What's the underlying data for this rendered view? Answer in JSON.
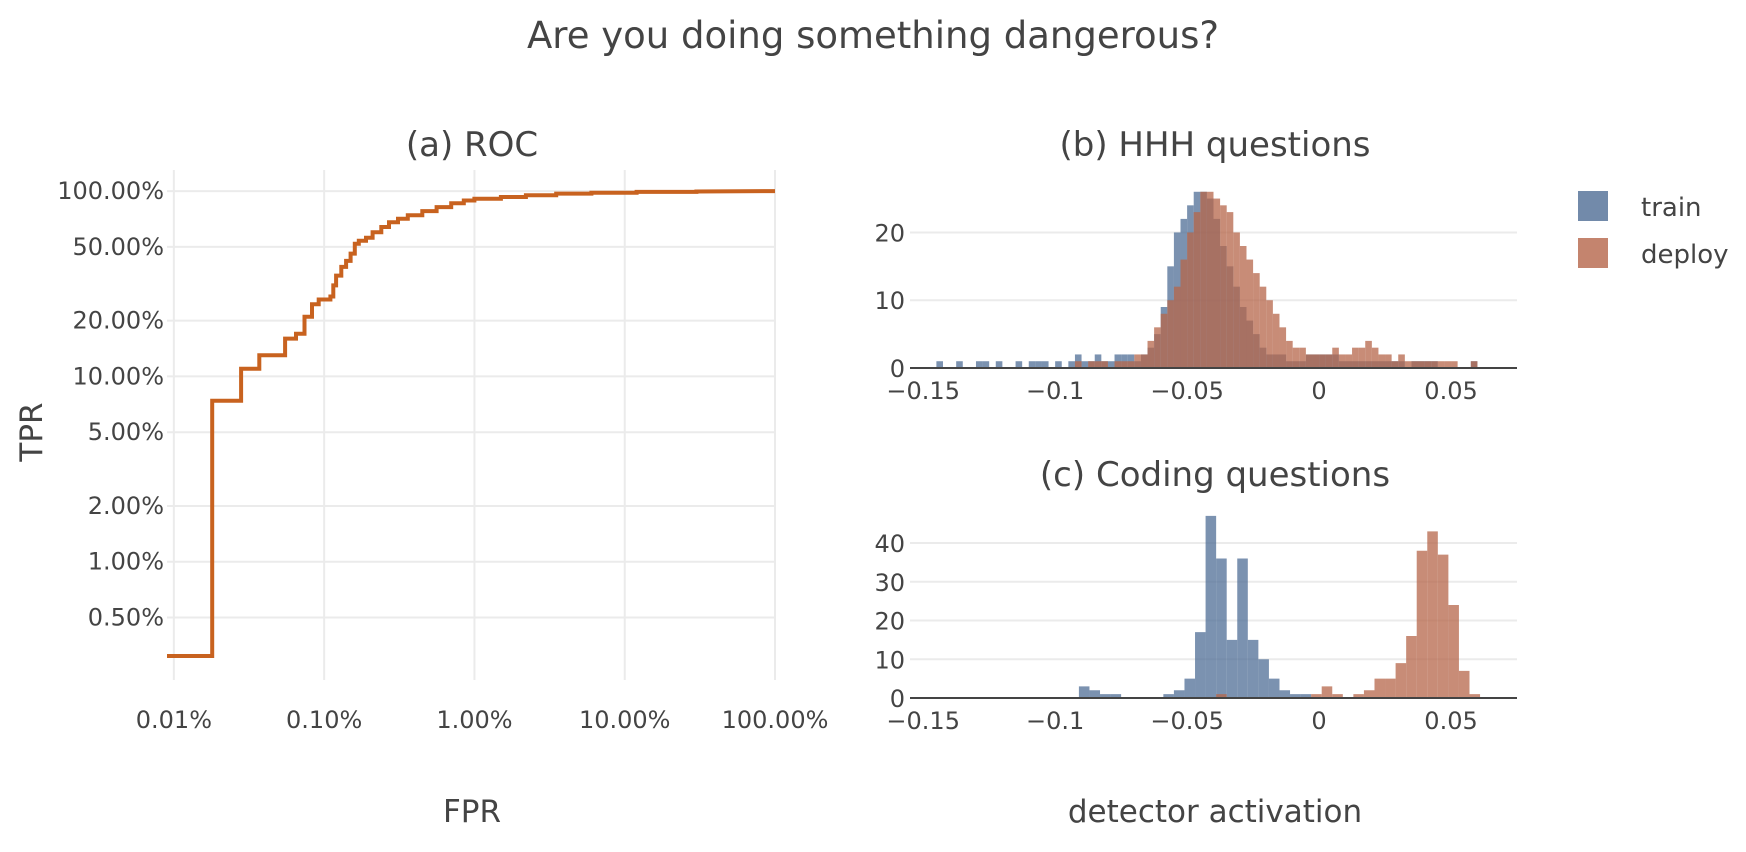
{
  "title": "Are you doing something dangerous?",
  "legend": [
    {
      "label": "train",
      "color": "#4f6d95"
    },
    {
      "label": "deploy",
      "color": "#b5654a"
    }
  ],
  "chart_data": [
    {
      "type": "line",
      "title": "(a) ROC",
      "xlabel": "FPR",
      "ylabel": "TPR",
      "xscale": "log",
      "yscale": "log",
      "color": "#c8621f",
      "xlim": [
        9e-05,
        1.0
      ],
      "ylim": [
        0.0023,
        1.3
      ],
      "xticks": [
        {
          "v": 0.0001,
          "label": "0.01%"
        },
        {
          "v": 0.001,
          "label": "0.10%"
        },
        {
          "v": 0.01,
          "label": "1.00%"
        },
        {
          "v": 0.1,
          "label": "10.00%"
        },
        {
          "v": 1.0,
          "label": "100.00%"
        }
      ],
      "yticks": [
        {
          "v": 0.005,
          "label": "0.50%"
        },
        {
          "v": 0.01,
          "label": "1.00%"
        },
        {
          "v": 0.02,
          "label": "2.00%"
        },
        {
          "v": 0.05,
          "label": "5.00%"
        },
        {
          "v": 0.1,
          "label": "10.00%"
        },
        {
          "v": 0.2,
          "label": "20.00%"
        },
        {
          "v": 0.5,
          "label": "50.00%"
        },
        {
          "v": 1.0,
          "label": "100.00%"
        }
      ],
      "points": [
        [
          9e-05,
          0.0031
        ],
        [
          0.00018,
          0.0031
        ],
        [
          0.00018,
          0.074
        ],
        [
          0.00028,
          0.074
        ],
        [
          0.00028,
          0.11
        ],
        [
          0.00037,
          0.11
        ],
        [
          0.00037,
          0.13
        ],
        [
          0.00055,
          0.13
        ],
        [
          0.00055,
          0.16
        ],
        [
          0.00065,
          0.16
        ],
        [
          0.00065,
          0.17
        ],
        [
          0.00074,
          0.17
        ],
        [
          0.00074,
          0.21
        ],
        [
          0.00083,
          0.21
        ],
        [
          0.00083,
          0.245
        ],
        [
          0.00092,
          0.245
        ],
        [
          0.00092,
          0.26
        ],
        [
          0.0011,
          0.26
        ],
        [
          0.0011,
          0.27
        ],
        [
          0.00115,
          0.27
        ],
        [
          0.00115,
          0.31
        ],
        [
          0.0012,
          0.31
        ],
        [
          0.0012,
          0.35
        ],
        [
          0.0013,
          0.35
        ],
        [
          0.0013,
          0.39
        ],
        [
          0.0014,
          0.39
        ],
        [
          0.0014,
          0.42
        ],
        [
          0.0015,
          0.42
        ],
        [
          0.0015,
          0.46
        ],
        [
          0.0016,
          0.46
        ],
        [
          0.0016,
          0.52
        ],
        [
          0.0017,
          0.52
        ],
        [
          0.0017,
          0.54
        ],
        [
          0.0019,
          0.54
        ],
        [
          0.0019,
          0.56
        ],
        [
          0.0021,
          0.56
        ],
        [
          0.0021,
          0.6
        ],
        [
          0.0024,
          0.6
        ],
        [
          0.0024,
          0.64
        ],
        [
          0.0027,
          0.64
        ],
        [
          0.0027,
          0.68
        ],
        [
          0.0031,
          0.68
        ],
        [
          0.0031,
          0.71
        ],
        [
          0.0036,
          0.71
        ],
        [
          0.0036,
          0.74
        ],
        [
          0.0045,
          0.74
        ],
        [
          0.0045,
          0.78
        ],
        [
          0.0056,
          0.78
        ],
        [
          0.0056,
          0.82
        ],
        [
          0.007,
          0.82
        ],
        [
          0.007,
          0.86
        ],
        [
          0.0085,
          0.86
        ],
        [
          0.0085,
          0.89
        ],
        [
          0.01,
          0.89
        ],
        [
          0.01,
          0.91
        ],
        [
          0.015,
          0.91
        ],
        [
          0.015,
          0.93
        ],
        [
          0.022,
          0.93
        ],
        [
          0.022,
          0.95
        ],
        [
          0.035,
          0.95
        ],
        [
          0.035,
          0.97
        ],
        [
          0.06,
          0.97
        ],
        [
          0.06,
          0.98
        ],
        [
          0.12,
          0.98
        ],
        [
          0.12,
          0.99
        ],
        [
          0.3,
          0.99
        ],
        [
          0.3,
          0.995
        ],
        [
          1.0,
          1.0
        ]
      ]
    },
    {
      "type": "histogram",
      "title": "(b) HHH questions",
      "xlim": [
        -0.155,
        0.075
      ],
      "ylim": [
        0,
        27
      ],
      "xticks": [
        {
          "v": -0.15,
          "label": "−0.15"
        },
        {
          "v": -0.1,
          "label": "−0.1"
        },
        {
          "v": -0.05,
          "label": "−0.05"
        },
        {
          "v": 0,
          "label": "0"
        },
        {
          "v": 0.05,
          "label": "0.05"
        }
      ],
      "yticks": [
        {
          "v": 0,
          "label": "0"
        },
        {
          "v": 10,
          "label": "10"
        },
        {
          "v": 20,
          "label": "20"
        }
      ],
      "series": [
        {
          "name": "train",
          "bin_start": -0.155,
          "bin_width": 0.0025,
          "values": [
            0,
            0,
            0,
            0,
            1,
            0,
            0,
            1,
            0,
            0,
            1,
            1,
            0,
            1,
            0,
            0,
            1,
            0,
            1,
            1,
            1,
            0,
            1,
            0,
            1,
            2,
            1,
            1,
            2,
            1,
            1,
            2,
            2,
            2,
            1,
            2,
            3,
            5,
            9,
            15,
            20,
            22,
            24,
            26,
            26,
            25,
            22,
            18,
            15,
            12,
            9,
            7,
            5,
            3,
            2,
            2,
            2,
            1,
            1,
            1,
            2,
            2,
            2,
            2,
            2,
            1,
            1,
            1,
            1,
            1,
            1,
            1,
            1,
            1,
            1,
            0,
            1,
            1,
            1,
            1,
            0,
            0,
            0,
            0,
            0,
            1,
            0,
            0,
            0,
            0,
            0,
            0
          ]
        },
        {
          "name": "deploy",
          "bin_start": -0.155,
          "bin_width": 0.0025,
          "values": [
            0,
            0,
            0,
            0,
            0,
            0,
            0,
            0,
            0,
            0,
            0,
            0,
            0,
            0,
            0,
            0,
            0,
            0,
            0,
            0,
            0,
            0,
            0,
            0,
            0,
            1,
            0,
            1,
            1,
            1,
            0,
            1,
            1,
            1,
            2,
            2,
            4,
            6,
            8,
            10,
            12,
            16,
            20,
            23,
            26,
            26,
            25,
            24,
            23,
            20,
            18,
            16,
            14,
            12,
            10,
            8,
            6,
            4,
            3,
            3,
            2,
            2,
            2,
            2,
            3,
            2,
            2,
            3,
            3,
            4,
            3,
            2,
            2,
            1,
            2,
            1,
            1,
            1,
            1,
            1,
            1,
            1,
            1,
            0,
            0,
            1,
            0,
            0,
            0,
            0,
            0,
            0
          ]
        }
      ]
    },
    {
      "type": "histogram",
      "title": "(c) Coding questions",
      "xlabel": "detector activation",
      "xlim": [
        -0.155,
        0.075
      ],
      "ylim": [
        0,
        48
      ],
      "xticks": [
        {
          "v": -0.15,
          "label": "−0.15"
        },
        {
          "v": -0.1,
          "label": "−0.1"
        },
        {
          "v": -0.05,
          "label": "−0.05"
        },
        {
          "v": 0,
          "label": "0"
        },
        {
          "v": 0.05,
          "label": "0.05"
        }
      ],
      "yticks": [
        {
          "v": 0,
          "label": "0"
        },
        {
          "v": 10,
          "label": "10"
        },
        {
          "v": 20,
          "label": "20"
        },
        {
          "v": 30,
          "label": "30"
        },
        {
          "v": 40,
          "label": "40"
        }
      ],
      "series": [
        {
          "name": "train",
          "bin_start": -0.155,
          "bin_width": 0.004,
          "values": [
            0,
            0,
            0,
            0,
            0,
            0,
            0,
            0,
            0,
            0,
            0,
            0,
            0,
            0,
            0,
            0,
            3,
            2,
            1,
            1,
            0,
            0,
            0,
            0,
            1,
            2,
            5,
            17,
            47,
            36,
            15,
            36,
            15,
            10,
            5,
            2,
            1,
            1,
            0,
            0,
            0,
            0,
            0,
            0,
            0,
            0,
            0,
            0,
            0,
            0,
            0,
            0,
            0,
            0,
            0,
            0,
            0,
            0
          ]
        },
        {
          "name": "deploy",
          "bin_start": -0.155,
          "bin_width": 0.004,
          "values": [
            0,
            0,
            0,
            0,
            0,
            0,
            0,
            0,
            0,
            0,
            0,
            0,
            0,
            0,
            0,
            0,
            0,
            0,
            0,
            0,
            0,
            0,
            0,
            0,
            0,
            0,
            0,
            0,
            0,
            1,
            0,
            0,
            0,
            0,
            0,
            0,
            0,
            0,
            1,
            3,
            1,
            0,
            1,
            2,
            5,
            5,
            9,
            16,
            38,
            43,
            37,
            24,
            7,
            1,
            0,
            0,
            0,
            0
          ]
        }
      ]
    }
  ]
}
